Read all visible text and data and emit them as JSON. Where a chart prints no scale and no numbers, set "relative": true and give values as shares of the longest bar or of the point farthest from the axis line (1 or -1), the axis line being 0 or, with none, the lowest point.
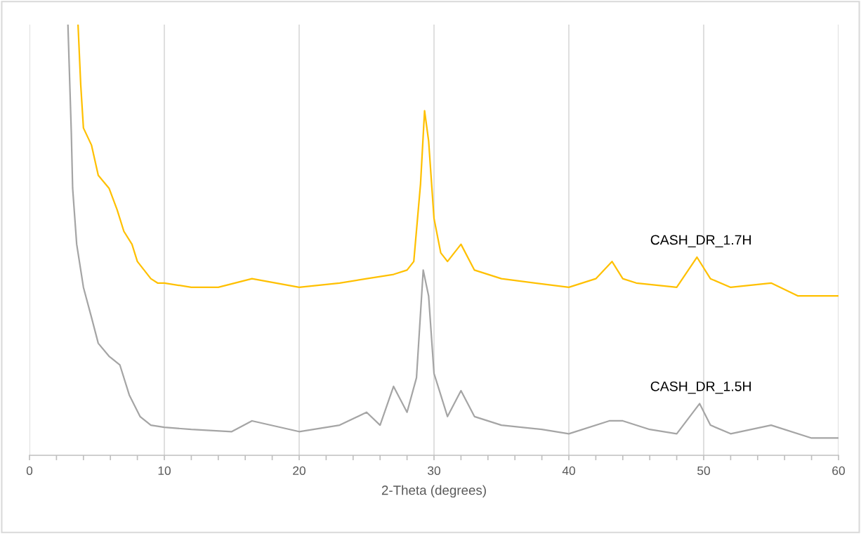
{
  "chart_data": {
    "type": "line",
    "xlabel": "2-Theta (degrees)",
    "relative": true,
    "grid": "x",
    "legend": false,
    "marker": "none",
    "line_style": "solid",
    "xlim": [
      0,
      60
    ],
    "xticks": [
      0,
      {
        "value": 2,
        "label": null
      },
      {
        "value": 4,
        "label": null
      },
      {
        "value": 6,
        "label": null
      },
      {
        "value": 8,
        "label": null
      },
      10,
      {
        "value": 12,
        "label": null
      },
      {
        "value": 14,
        "label": null
      },
      {
        "value": 16,
        "label": null
      },
      {
        "value": 18,
        "label": null
      },
      20,
      {
        "value": 22,
        "label": null
      },
      {
        "value": 24,
        "label": null
      },
      {
        "value": 26,
        "label": null
      },
      {
        "value": 28,
        "label": null
      },
      30,
      {
        "value": 32,
        "label": null
      },
      {
        "value": 34,
        "label": null
      },
      {
        "value": 36,
        "label": null
      },
      {
        "value": 38,
        "label": null
      },
      40,
      {
        "value": 42,
        "label": null
      },
      {
        "value": 44,
        "label": null
      },
      {
        "value": 46,
        "label": null
      },
      {
        "value": 48,
        "label": null
      },
      50,
      {
        "value": 52,
        "label": null
      },
      {
        "value": 54,
        "label": null
      },
      {
        "value": 56,
        "label": null
      },
      {
        "value": 58,
        "label": null
      },
      60
    ],
    "series": [
      {
        "name": "CASH_DR_1.7H",
        "color": "#ffc000",
        "x": [
          3.6,
          3.8,
          4.0,
          4.6,
          5.1,
          5.9,
          6.5,
          7.0,
          7.6,
          8.0,
          8.5,
          9.0,
          9.5,
          10,
          12,
          14,
          16.5,
          20,
          23,
          25,
          27,
          28,
          28.5,
          29.0,
          29.3,
          29.6,
          30.0,
          30.5,
          31,
          32,
          33,
          35,
          40,
          42,
          43.2,
          44,
          45,
          48,
          49.5,
          50.5,
          52,
          55,
          57,
          60
        ],
        "values": [
          1.0,
          0.86,
          0.76,
          0.72,
          0.65,
          0.62,
          0.57,
          0.52,
          0.49,
          0.45,
          0.43,
          0.41,
          0.4,
          0.4,
          0.39,
          0.39,
          0.41,
          0.39,
          0.4,
          0.41,
          0.42,
          0.43,
          0.45,
          0.63,
          0.8,
          0.73,
          0.55,
          0.47,
          0.45,
          0.49,
          0.43,
          0.41,
          0.39,
          0.41,
          0.45,
          0.41,
          0.4,
          0.39,
          0.46,
          0.41,
          0.39,
          0.4,
          0.37,
          0.37
        ]
      },
      {
        "name": "CASH_DR_1.5H",
        "color": "#a5a5a5",
        "x": [
          2.85,
          3.1,
          3.2,
          3.5,
          4.0,
          4.6,
          5.1,
          5.9,
          6.7,
          7.4,
          8.2,
          9,
          10,
          12,
          15,
          16.5,
          20,
          23,
          25,
          26,
          27,
          28,
          28.7,
          29.2,
          29.6,
          30,
          30.5,
          31,
          32,
          33,
          35,
          38,
          40,
          43,
          44,
          46,
          48,
          49.7,
          50.5,
          52,
          55,
          58,
          60
        ],
        "values": [
          1.0,
          0.75,
          0.62,
          0.49,
          0.39,
          0.32,
          0.26,
          0.23,
          0.21,
          0.14,
          0.09,
          0.07,
          0.065,
          0.06,
          0.055,
          0.08,
          0.055,
          0.07,
          0.1,
          0.07,
          0.16,
          0.1,
          0.18,
          0.43,
          0.37,
          0.19,
          0.14,
          0.09,
          0.15,
          0.09,
          0.07,
          0.06,
          0.05,
          0.08,
          0.08,
          0.06,
          0.05,
          0.12,
          0.07,
          0.05,
          0.07,
          0.04,
          0.04
        ]
      }
    ]
  }
}
